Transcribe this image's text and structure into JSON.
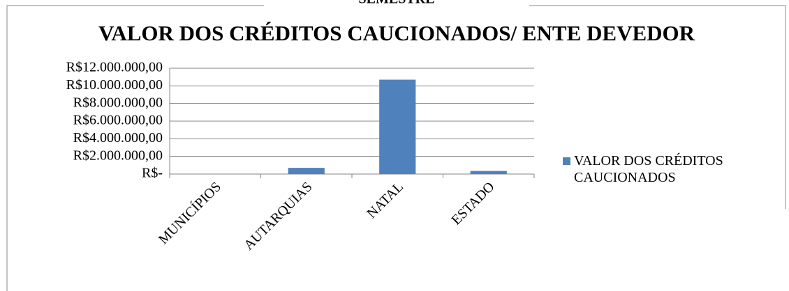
{
  "chart_data": {
    "type": "bar",
    "header": "SEMESTRE",
    "title": "VALOR DOS CRÉDITOS CAUCIONADOS/ ENTE DEVEDOR",
    "categories": [
      "MUNICÍPIOS",
      "AUTARQUIAS",
      "NATAL",
      "ESTADO"
    ],
    "series": [
      {
        "name": "VALOR DOS CRÉDITOS CAUCIONADOS",
        "color": "#4f81bd",
        "values": [
          0,
          700000,
          10700000,
          350000
        ]
      }
    ],
    "ylim": [
      0,
      12000000
    ],
    "yticks": [
      {
        "value": 0,
        "label": "R$-"
      },
      {
        "value": 2000000,
        "label": "R$2.000.000,00"
      },
      {
        "value": 4000000,
        "label": "R$4.000.000,00"
      },
      {
        "value": 6000000,
        "label": "R$6.000.000,00"
      },
      {
        "value": 8000000,
        "label": "R$8.000.000,00"
      },
      {
        "value": 10000000,
        "label": "R$10.000.000,00"
      },
      {
        "value": 12000000,
        "label": "R$12.000.000,00"
      }
    ],
    "grid": true,
    "legend": "right"
  }
}
